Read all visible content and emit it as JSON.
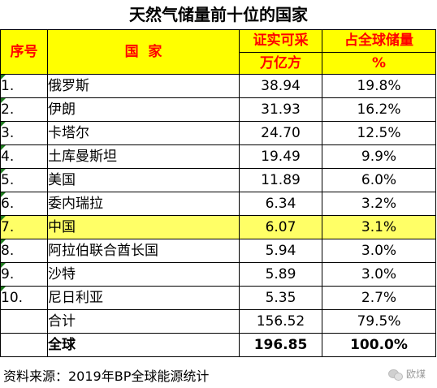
{
  "title": "天然气储量前十位的国家",
  "headers": {
    "rank": "序号",
    "country": "国  家",
    "value": "证实可采",
    "value_unit": "万亿方",
    "share": "占全球储量",
    "share_unit": "%"
  },
  "rows": [
    {
      "rank": "1.",
      "country": "俄罗斯",
      "value": "38.94",
      "share": "19.8%"
    },
    {
      "rank": "2.",
      "country": "伊朗",
      "value": "31.93",
      "share": "16.2%"
    },
    {
      "rank": "3.",
      "country": "卡塔尔",
      "value": "24.70",
      "share": "12.5%"
    },
    {
      "rank": "4.",
      "country": "土库曼斯坦",
      "value": "19.49",
      "share": "9.9%"
    },
    {
      "rank": "5.",
      "country": "美国",
      "value": "11.89",
      "share": "6.0%"
    },
    {
      "rank": "6.",
      "country": "委内瑞拉",
      "value": "6.34",
      "share": "3.2%"
    },
    {
      "rank": "7.",
      "country": "中国",
      "value": "6.07",
      "share": "3.1%"
    },
    {
      "rank": "8.",
      "country": "阿拉伯联合酋长国",
      "value": "5.94",
      "share": "3.0%"
    },
    {
      "rank": "9.",
      "country": "沙特",
      "value": "5.89",
      "share": "3.0%"
    },
    {
      "rank": "10.",
      "country": "尼日利亚",
      "value": "5.35",
      "share": "2.7%"
    }
  ],
  "subtotal": {
    "label": "合计",
    "value": "156.52",
    "share": "79.5%"
  },
  "global": {
    "label": "全球",
    "value": "196.85",
    "share": "100.0%"
  },
  "source": "资料来源：2019年BP全球能源统计",
  "watermark": "欧煤",
  "colors": {
    "header_bg": "#ffff00",
    "header_text": "#ff0000",
    "highlight_bg": "#ffff66",
    "flag": "#1f7a1f"
  }
}
